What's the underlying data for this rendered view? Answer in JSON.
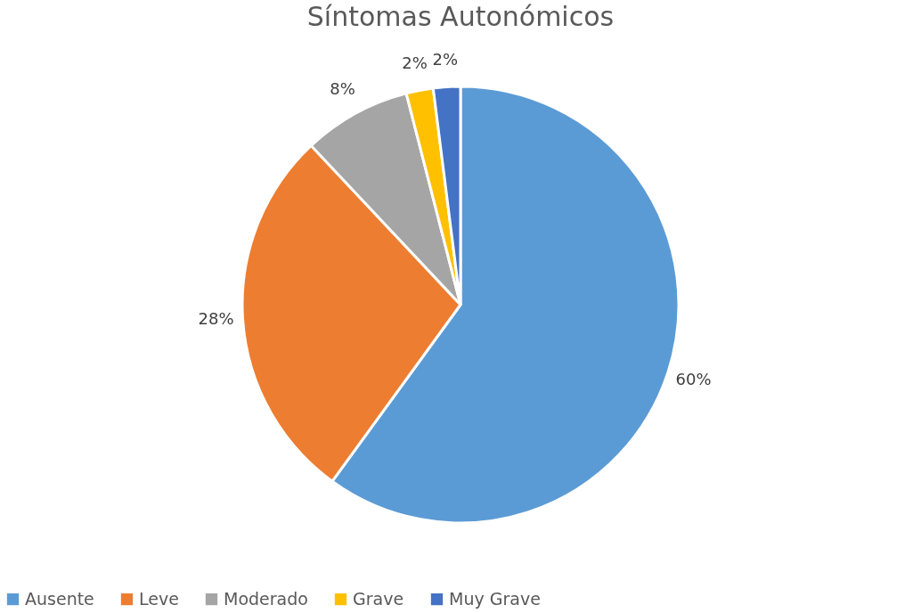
{
  "chart_data": {
    "type": "pie",
    "title": "Síntomas Autonómicos",
    "categories": [
      "Ausente",
      "Leve",
      "Moderado",
      "Grave",
      "Muy Grave"
    ],
    "values": [
      60,
      28,
      8,
      2,
      2
    ],
    "colors": [
      "#5b9bd5",
      "#ed7d31",
      "#a5a5a5",
      "#ffc000",
      "#4472c4"
    ],
    "value_labels": [
      "60%",
      "28%",
      "8%",
      "2%",
      "2%"
    ],
    "legend": "bottom"
  }
}
